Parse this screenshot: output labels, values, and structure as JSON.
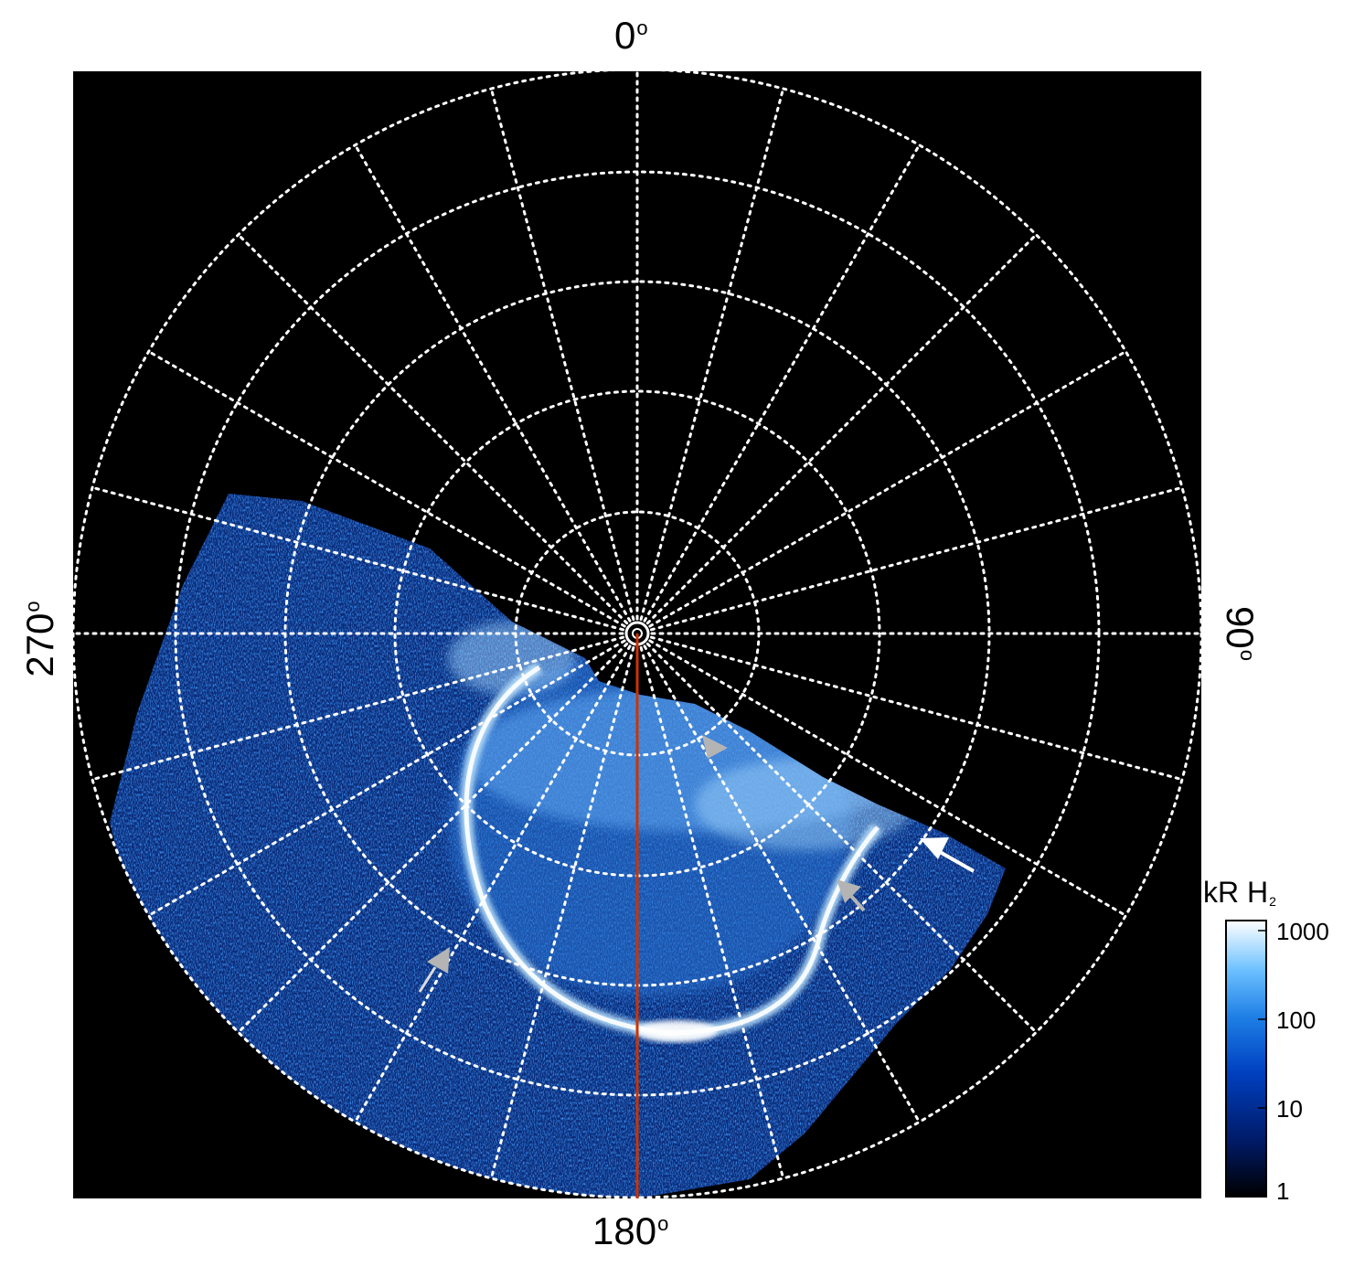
{
  "figure": {
    "axis_labels": {
      "top": "0",
      "right": "90",
      "bottom": "180",
      "left": "270",
      "degree_symbol": "o"
    },
    "colorbar": {
      "title_main": "kR H",
      "title_sub": "2",
      "tick_labels": [
        "1000",
        "100",
        "10",
        "1"
      ],
      "tick_values": [
        1000,
        100,
        10,
        1
      ],
      "scale": "log",
      "range": [
        1,
        1500
      ],
      "colormap": [
        "#000000",
        "#001a66",
        "#0040c0",
        "#1e7fe6",
        "#6cc0ff",
        "#ffffff"
      ]
    },
    "grid": {
      "style": "dotted",
      "color": "#ffffff",
      "meridian_spacing_deg": 15,
      "parallel_count": 5
    },
    "colors": {
      "background": "#000000",
      "central_meridian": "#cc3300",
      "arrow_main": "#ffffff",
      "arrow_secondary": "#b4b4b4"
    },
    "arrows": [
      {
        "name": "white-arrow",
        "color": "white"
      },
      {
        "name": "gray-arrow-upper",
        "color": "gray"
      },
      {
        "name": "gray-arrow-right",
        "color": "gray"
      },
      {
        "name": "gray-arrow-left",
        "color": "gray"
      }
    ]
  }
}
